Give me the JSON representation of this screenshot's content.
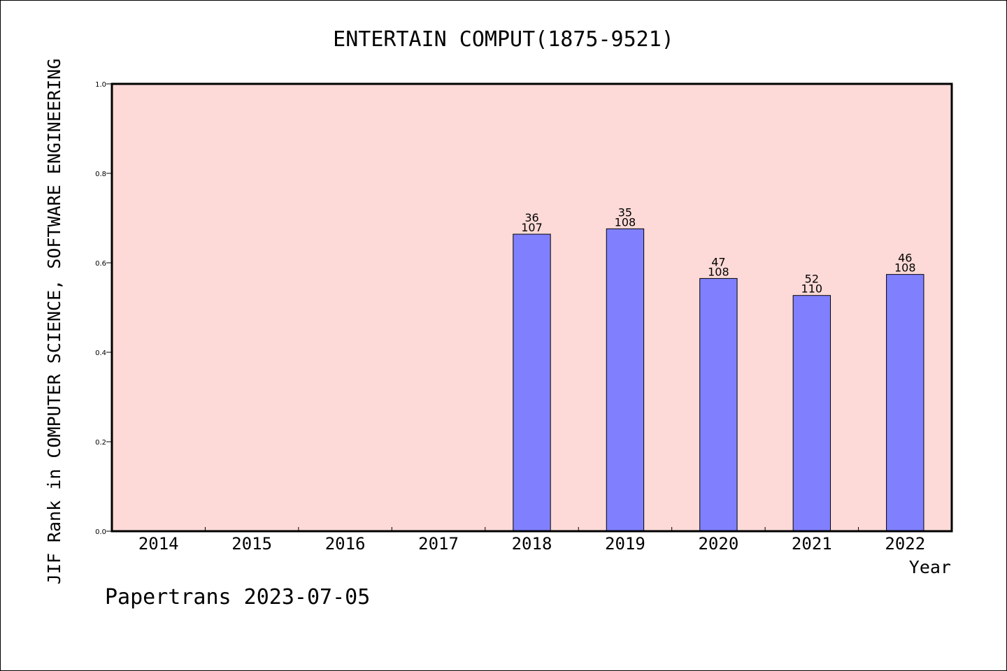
{
  "chart_data": {
    "type": "bar",
    "title": "ENTERTAIN COMPUT(1875-9521)",
    "xlabel": "Year",
    "ylabel": "JIF Rank in COMPUTER SCIENCE, SOFTWARE ENGINEERING",
    "categories": [
      "2014",
      "2015",
      "2016",
      "2017",
      "2018",
      "2019",
      "2020",
      "2021",
      "2022"
    ],
    "values": [
      null,
      null,
      null,
      null,
      0.664,
      0.676,
      0.565,
      0.527,
      0.574
    ],
    "labels_top": [
      "",
      "",
      "",
      "",
      "36",
      "35",
      "47",
      "52",
      "46"
    ],
    "labels_bottom": [
      "",
      "",
      "",
      "",
      "107",
      "108",
      "108",
      "110",
      "108"
    ],
    "ylim": [
      0,
      1.0
    ],
    "yticks": [
      "0.0",
      "0.2",
      "0.4",
      "0.6",
      "0.8",
      "1.0"
    ],
    "grid": false,
    "legend": "none",
    "colors": {
      "plot_background": "#fddad7",
      "bar_fill": "#8080ff",
      "bar_stroke": "#000000"
    }
  },
  "footer": {
    "text": "Papertrans 2023-07-05"
  }
}
